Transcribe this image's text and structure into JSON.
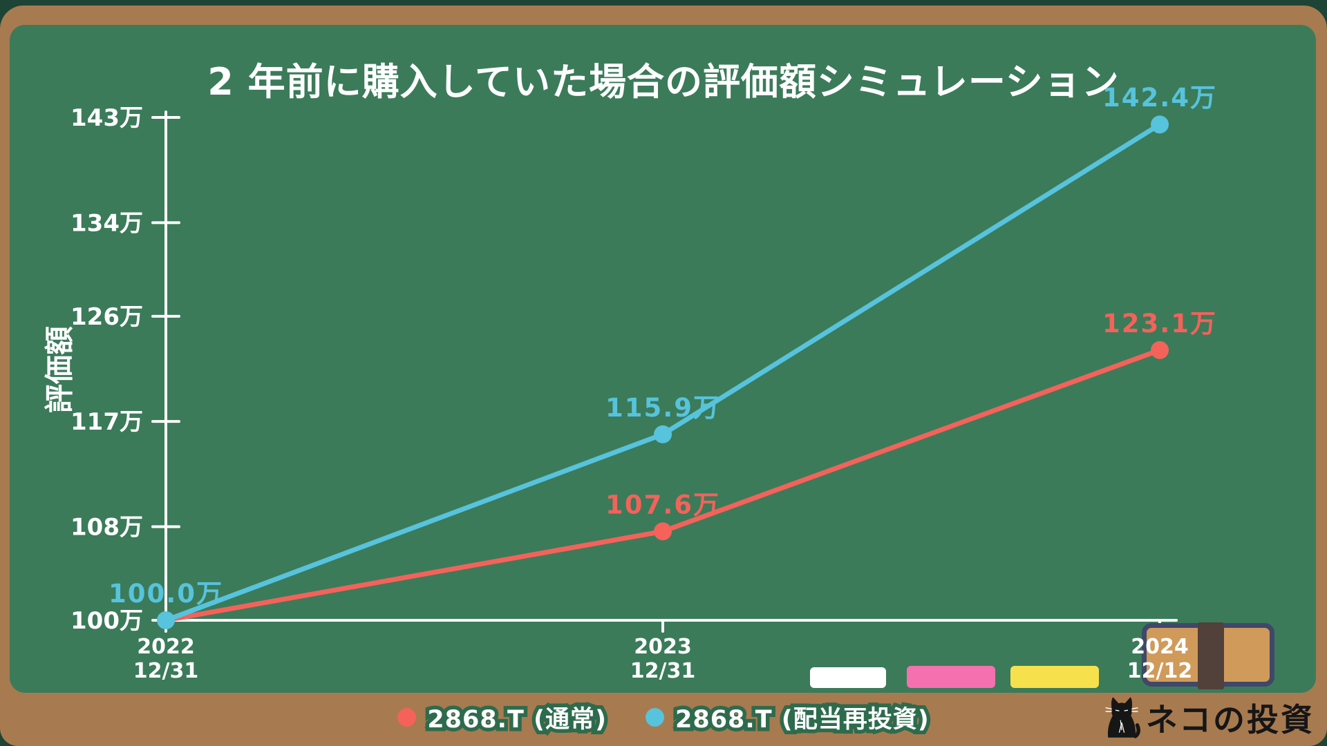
{
  "title": "2 年前に購入していた場合の評価額シミュレーション",
  "chart_data": {
    "type": "line",
    "title": "2 年前に購入していた場合の評価額シミュレーション",
    "xlabel": "",
    "ylabel": "評価額",
    "unit": "万",
    "grid": false,
    "legend_position": "bottom",
    "categories": [
      [
        "2022",
        "12/31"
      ],
      [
        "2023",
        "12/31"
      ],
      [
        "2024",
        "12/12"
      ]
    ],
    "ylim": [
      100,
      143
    ],
    "yticks": [
      {
        "value": 100,
        "label": "100万"
      },
      {
        "value": 108,
        "label": "108万"
      },
      {
        "value": 117,
        "label": "117万"
      },
      {
        "value": 126,
        "label": "126万"
      },
      {
        "value": 134,
        "label": "134万"
      },
      {
        "value": 143,
        "label": "143万"
      }
    ],
    "series": [
      {
        "name": "2868.T (通常)",
        "color": "#f4625a",
        "values": [
          100.0,
          107.6,
          123.1
        ],
        "point_labels": [
          null,
          "107.6万",
          "123.1万"
        ]
      },
      {
        "name": "2868.T (配当再投資)",
        "color": "#57c3dd",
        "values": [
          100.0,
          115.9,
          142.4
        ],
        "point_labels": [
          "100.0万",
          "115.9万",
          "142.4万"
        ]
      }
    ]
  },
  "legend": {
    "items": [
      {
        "label": "2868.T (通常)",
        "color": "#f4625a"
      },
      {
        "label": "2868.T (配当再投資)",
        "color": "#57c3dd"
      }
    ]
  },
  "logo": {
    "text": "ネコの投資"
  },
  "colors": {
    "background": "#1d4434",
    "frame": "#a87a50",
    "board": "#3b7b5a",
    "axis": "#ffffff",
    "series_red": "#f4625a",
    "series_blue": "#57c3dd",
    "legend_text_outline": "#2e6b4d"
  },
  "decorations": {
    "chalks": [
      {
        "name": "white-chalk",
        "color": "#ffffff"
      },
      {
        "name": "pink-chalk",
        "color": "#f470ae"
      },
      {
        "name": "yellow-chalk",
        "color": "#f6e14d"
      }
    ],
    "eraser": {
      "body": "#d09a5b",
      "band": "#52403a",
      "border": "#40486a"
    }
  }
}
